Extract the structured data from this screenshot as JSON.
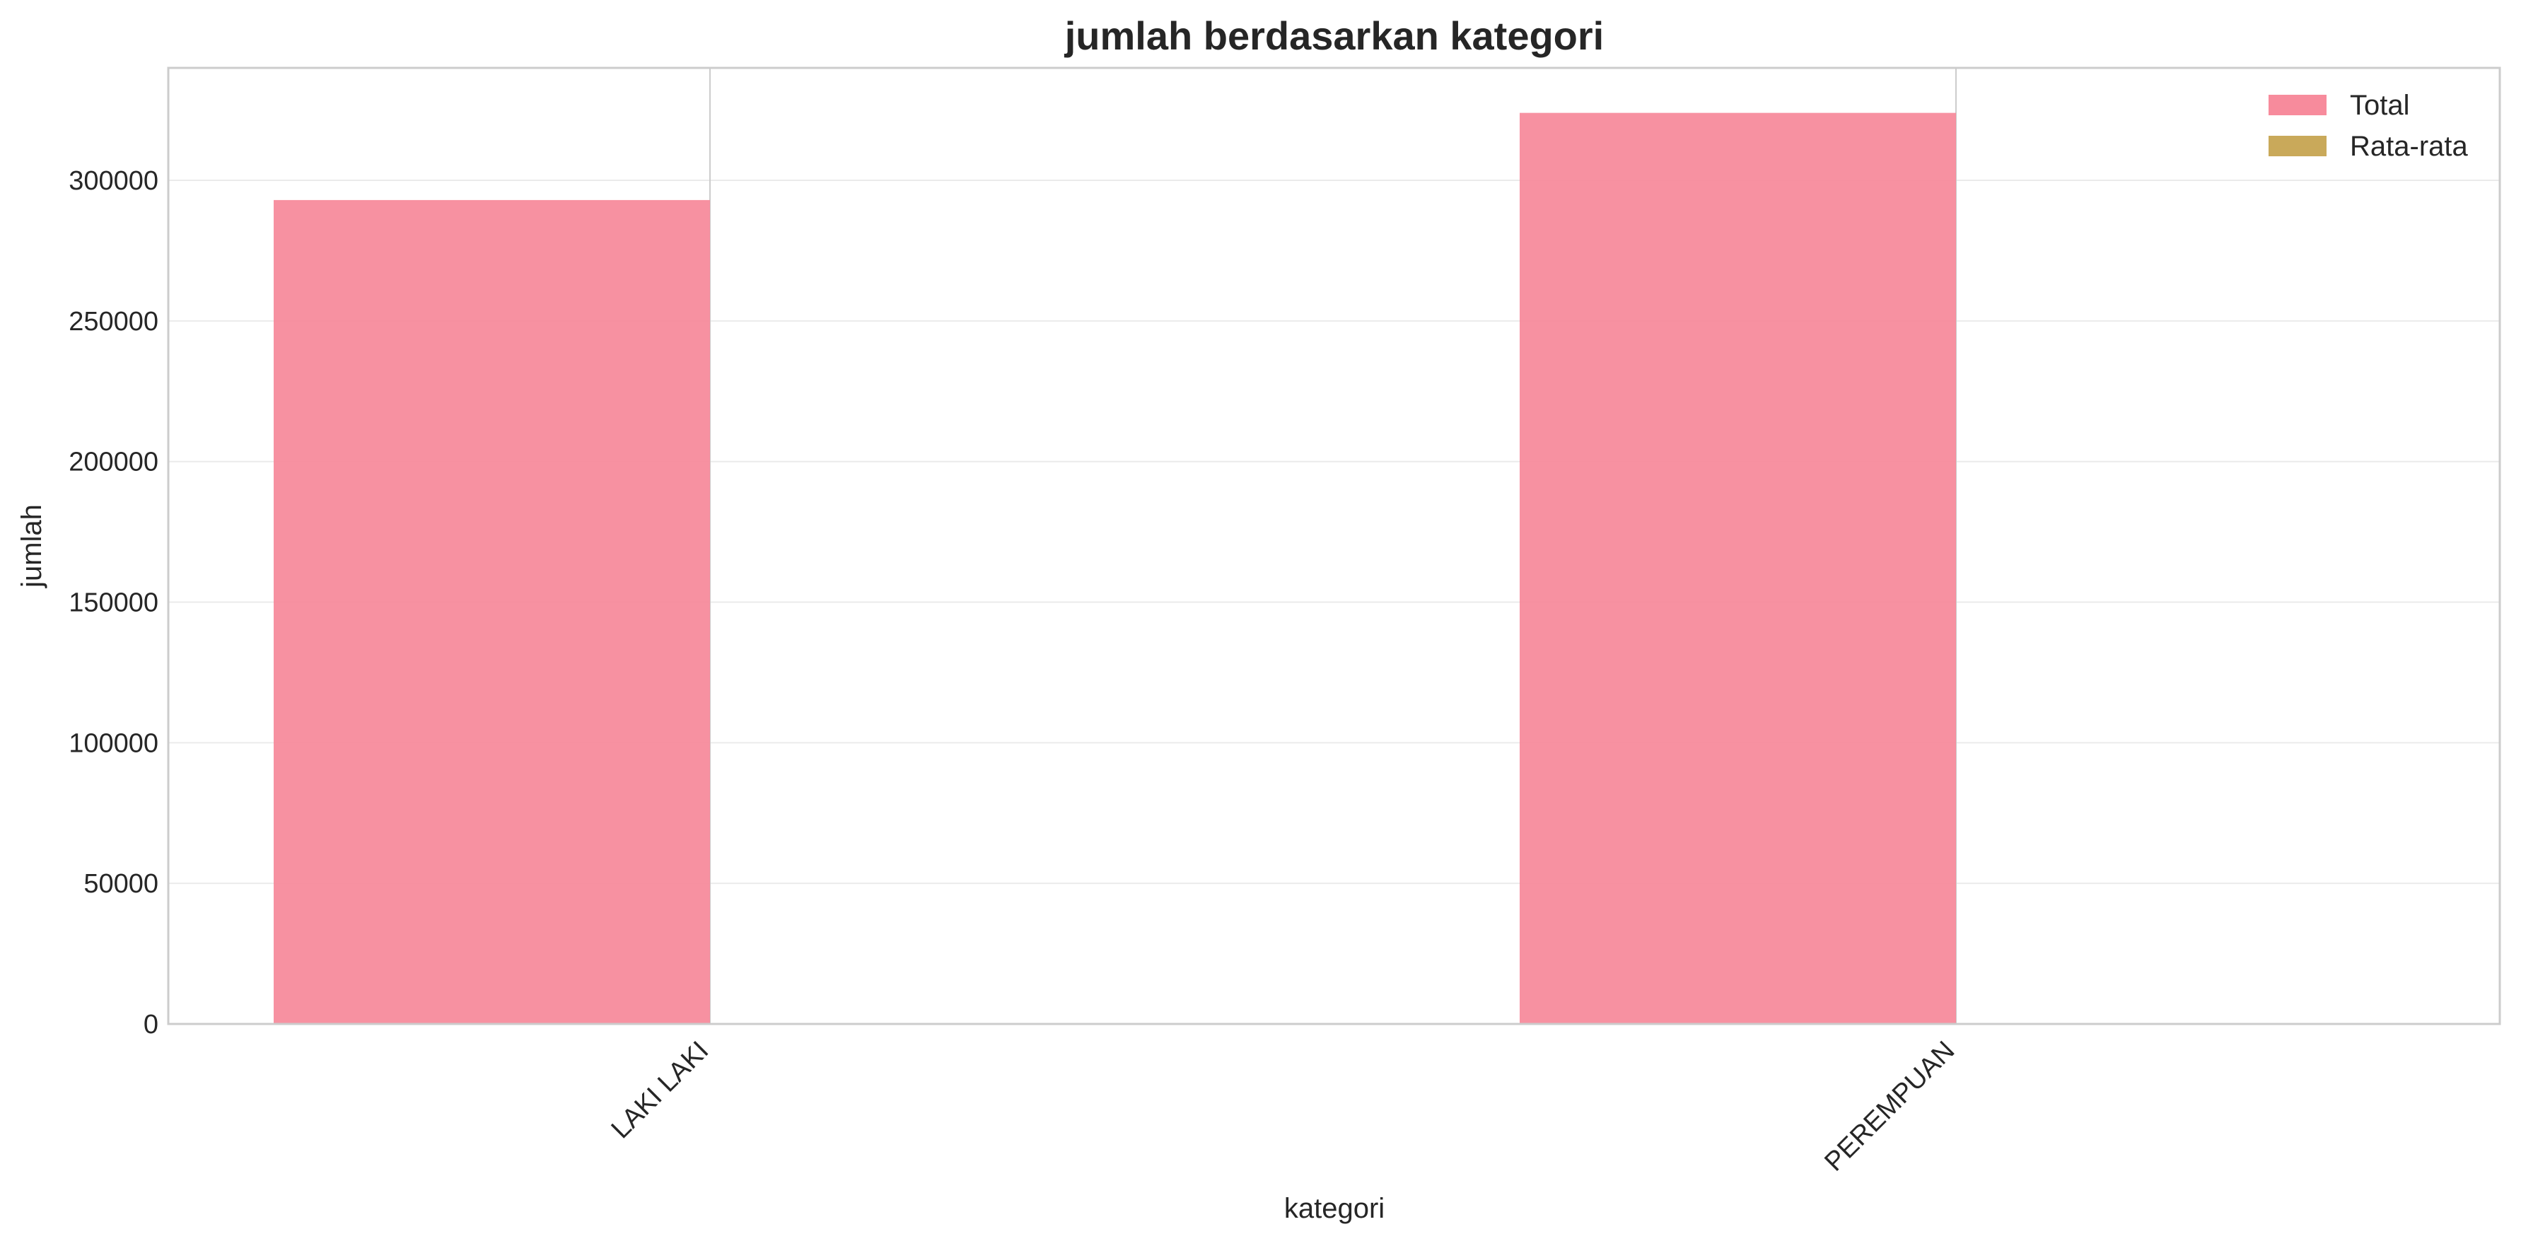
{
  "chart_data": {
    "type": "bar",
    "title": "jumlah berdasarkan kategori",
    "xlabel": "kategori",
    "ylabel": "jumlah",
    "categories": [
      "LAKI LAKI",
      "PEREMPUAN"
    ],
    "series": [
      {
        "name": "Total",
        "values": [
          293000,
          324000
        ],
        "color": "#f78b9c"
      },
      {
        "name": "Rata-rata",
        "values": [
          0,
          0
        ],
        "color": "#c9a95a"
      }
    ],
    "ylim": [
      0,
      340000
    ],
    "yticks": [
      0,
      50000,
      100000,
      150000,
      200000,
      250000,
      300000
    ],
    "ytick_labels": [
      "0",
      "50000",
      "100000",
      "150000",
      "200000",
      "250000",
      "300000"
    ],
    "grid": true,
    "legend_position": "top-right",
    "xtick_rotation": -45
  }
}
